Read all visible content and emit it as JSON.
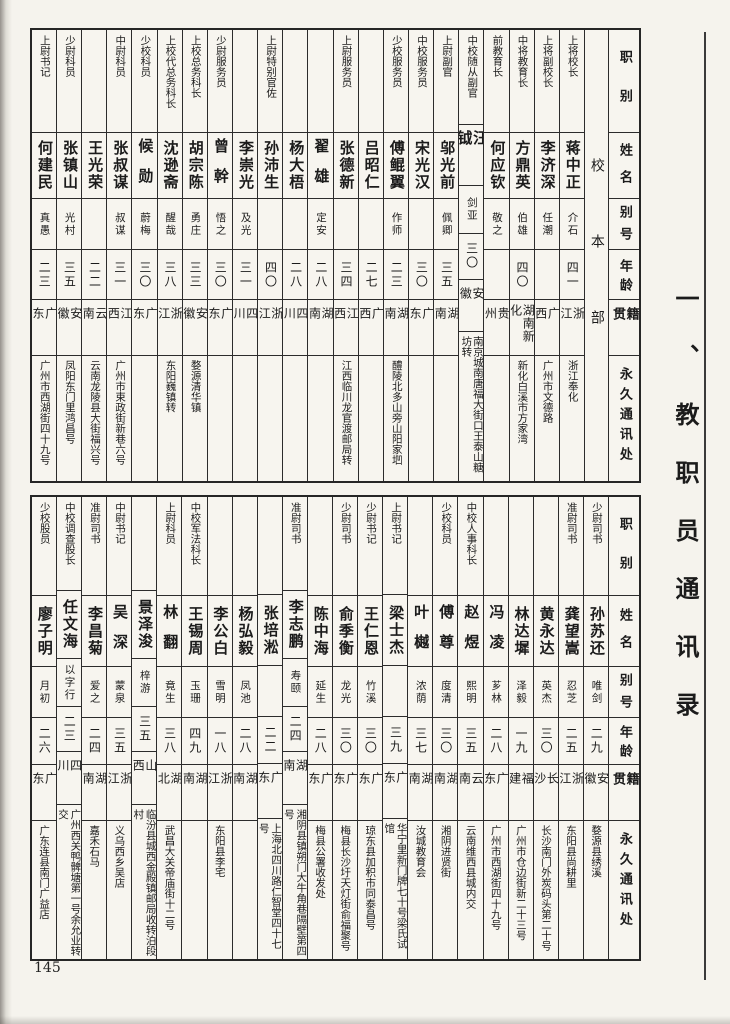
{
  "page": {
    "number": "145",
    "margin_title": "一、教职员通讯录",
    "section_label": "校本部"
  },
  "headers": {
    "rank": "职别",
    "name": "姓名",
    "alias": "别号",
    "age": "年龄",
    "origin": "籍贯",
    "address": "永久通讯处"
  },
  "table1": {
    "people": [
      {
        "rank": "上将校长",
        "name": "蒋中正",
        "alias": "介石",
        "age": "四一",
        "origin": "浙江",
        "address": "浙江奉化"
      },
      {
        "rank": "上将副校长",
        "name": "李济深",
        "alias": "任潮",
        "age": "",
        "origin": "广西",
        "address": "广州市文德路"
      },
      {
        "rank": "中将教育长",
        "name": "方鼎英",
        "alias": "伯雄",
        "age": "四〇",
        "origin": "湖南新化",
        "address": "新化白溪市方家湾"
      },
      {
        "rank": "前教育长",
        "name": "何应钦",
        "alias": "敬之",
        "age": "",
        "origin": "贵州",
        "address": ""
      },
      {
        "rank": "中校随从副官",
        "name": "汪钺",
        "alias": "剑亚",
        "age": "三〇",
        "origin": "安徽",
        "address": "南京城南唐福大街口王泰山糖坊转"
      },
      {
        "rank": "上尉副官",
        "name": "邬光前",
        "alias": "佩卿",
        "age": "三五",
        "origin": "湖南",
        "address": ""
      },
      {
        "rank": "中校服务员",
        "name": "宋光汉",
        "alias": "",
        "age": "三〇",
        "origin": "广东",
        "address": ""
      },
      {
        "rank": "少校服务员",
        "name": "傅鲲翼",
        "alias": "作师",
        "age": "二三",
        "origin": "湖南",
        "address": "醴陵北多山旁山阳家垇"
      },
      {
        "rank": "",
        "name": "吕昭仁",
        "alias": "",
        "age": "二七",
        "origin": "广西",
        "address": ""
      },
      {
        "rank": "上尉服务员",
        "name": "张德新",
        "alias": "",
        "age": "三四",
        "origin": "江西",
        "address": "江西临川龙官渡邮局转"
      },
      {
        "rank": "",
        "name": "翟雄",
        "alias": "定安",
        "age": "二八",
        "origin": "湖南",
        "address": ""
      },
      {
        "rank": "",
        "name": "杨大梧",
        "alias": "",
        "age": "二八",
        "origin": "四川",
        "address": ""
      },
      {
        "rank": "上尉特别官佐",
        "name": "孙沛生",
        "alias": "",
        "age": "四〇",
        "origin": "浙江",
        "address": ""
      },
      {
        "rank": "",
        "name": "李崇光",
        "alias": "及光",
        "age": "三一",
        "origin": "四川",
        "address": ""
      },
      {
        "rank": "少尉服务员",
        "name": "曾幹",
        "alias": "悟之",
        "age": "三〇",
        "origin": "广东",
        "address": ""
      },
      {
        "rank": "上校总务科长",
        "name": "胡宗陈",
        "alias": "勇庄",
        "age": "三三",
        "origin": "安徽",
        "address": "婺源清华镇"
      },
      {
        "rank": "上校代总务科长",
        "name": "沈逊斋",
        "alias": "醒哉",
        "age": "三八",
        "origin": "浙江",
        "address": "东阳巍镇转"
      },
      {
        "rank": "少校科员",
        "name": "候勋",
        "alias": "蔚梅",
        "age": "三〇",
        "origin": "广东",
        "address": ""
      },
      {
        "rank": "中尉科员",
        "name": "张叔谋",
        "alias": "叔谋",
        "age": "三一",
        "origin": "江西",
        "address": "广州市束政街新巷六号"
      },
      {
        "rank": "",
        "name": "王光荣",
        "alias": "",
        "age": "二二",
        "origin": "云南",
        "address": "云南龙陵县大街福兴号"
      },
      {
        "rank": "少尉科员",
        "name": "张镇山",
        "alias": "光村",
        "age": "三五",
        "origin": "安徽",
        "address": "凤阳东门里鸿昌号"
      },
      {
        "rank": "上尉书记",
        "name": "何建民",
        "alias": "真愚",
        "age": "二三",
        "origin": "广东",
        "address": "广州市西湖街四十九号"
      }
    ]
  },
  "table2": {
    "people": [
      {
        "rank": "少尉司书",
        "name": "孙苏还",
        "alias": "唯剑",
        "age": "二九",
        "origin": "安徽",
        "address": "婺源县绣溪"
      },
      {
        "rank": "准尉司书",
        "name": "龚望嵩",
        "alias": "忍芝",
        "age": "二五",
        "origin": "浙江",
        "address": "东阳县尚耕里"
      },
      {
        "rank": "",
        "name": "黄永达",
        "alias": "英杰",
        "age": "三〇",
        "origin": "长沙",
        "address": "长沙南门外炭码头第二十号"
      },
      {
        "rank": "",
        "name": "林达墀",
        "alias": "泽毅",
        "age": "一九",
        "origin": "福建",
        "address": "广州市仓边街新二十三号"
      },
      {
        "rank": "",
        "name": "冯凌",
        "alias": "芗林",
        "age": "二八",
        "origin": "广东",
        "address": "广州市西湖街四十九号"
      },
      {
        "rank": "中校人事科长",
        "name": "赵煜",
        "alias": "熙明",
        "age": "三五",
        "origin": "云南",
        "address": "云南维西县城内交"
      },
      {
        "rank": "少校科员",
        "name": "傅尊",
        "alias": "度清",
        "age": "三〇",
        "origin": "湖南",
        "address": "湘阴进贤街"
      },
      {
        "rank": "",
        "name": "叶樾",
        "alias": "浓荫",
        "age": "三七",
        "origin": "湖南",
        "address": "汝城教育会"
      },
      {
        "rank": "上尉书记",
        "name": "梁士杰",
        "alias": "",
        "age": "三九",
        "origin": "广东",
        "address": "华宁里新门牌七十号梁氏试馆"
      },
      {
        "rank": "少尉书记",
        "name": "王仁恩",
        "alias": "竹溪",
        "age": "三〇",
        "origin": "广东",
        "address": "琼东县加积市同泰昌号"
      },
      {
        "rank": "少尉司书",
        "name": "俞季衡",
        "alias": "龙光",
        "age": "三〇",
        "origin": "广东",
        "address": "梅县长沙圩天灯街俞福聚号"
      },
      {
        "rank": "",
        "name": "陈中海",
        "alias": "延生",
        "age": "二八",
        "origin": "广东",
        "address": "梅县公署收发处"
      },
      {
        "rank": "准尉司书",
        "name": "李志鹏",
        "alias": "寿颐",
        "age": "二四",
        "origin": "湖南",
        "address": "湘阴县镇朔门大牛角巷隔壁第四号"
      },
      {
        "rank": "",
        "name": "张培淞",
        "alias": "",
        "age": "二二",
        "origin": "广东",
        "address": "上海北四川路仁智堂四十七号"
      },
      {
        "rank": "",
        "name": "杨弘毅",
        "alias": "凤池",
        "age": "二八",
        "origin": "湖南",
        "address": ""
      },
      {
        "rank": "",
        "name": "李公白",
        "alias": "雪明",
        "age": "一八",
        "origin": "浙江",
        "address": "东阳县李宅"
      },
      {
        "rank": "中校军法科长",
        "name": "王锡周",
        "alias": "玉珊",
        "age": "四九",
        "origin": "湖南",
        "address": ""
      },
      {
        "rank": "上尉科员",
        "name": "林翻",
        "alias": "竟生",
        "age": "三八",
        "origin": "湖北",
        "address": "武昌大关帝庙街十二号"
      },
      {
        "rank": "",
        "name": "景泽浚",
        "alias": "梓游",
        "age": "三五",
        "origin": "山西",
        "address": "临汾县城西金殿镇邮局收转泊段村"
      },
      {
        "rank": "中尉书记",
        "name": "吴深",
        "alias": "蒙泉",
        "age": "三五",
        "origin": "浙江",
        "address": "义乌西乡吴店"
      },
      {
        "rank": "准尉司书",
        "name": "李昌菊",
        "alias": "爱之",
        "age": "二四",
        "origin": "湖南",
        "address": "嘉禾石马"
      },
      {
        "rank": "中校调查股长",
        "name": "任文海",
        "alias": "以字行",
        "age": "二三",
        "origin": "四川",
        "address": "广州西关鸭髀塘第一号余允业转交"
      },
      {
        "rank": "少校股员",
        "name": "廖子明",
        "alias": "月初",
        "age": "二六",
        "origin": "广东",
        "address": "广东连县南门广益店"
      }
    ]
  }
}
